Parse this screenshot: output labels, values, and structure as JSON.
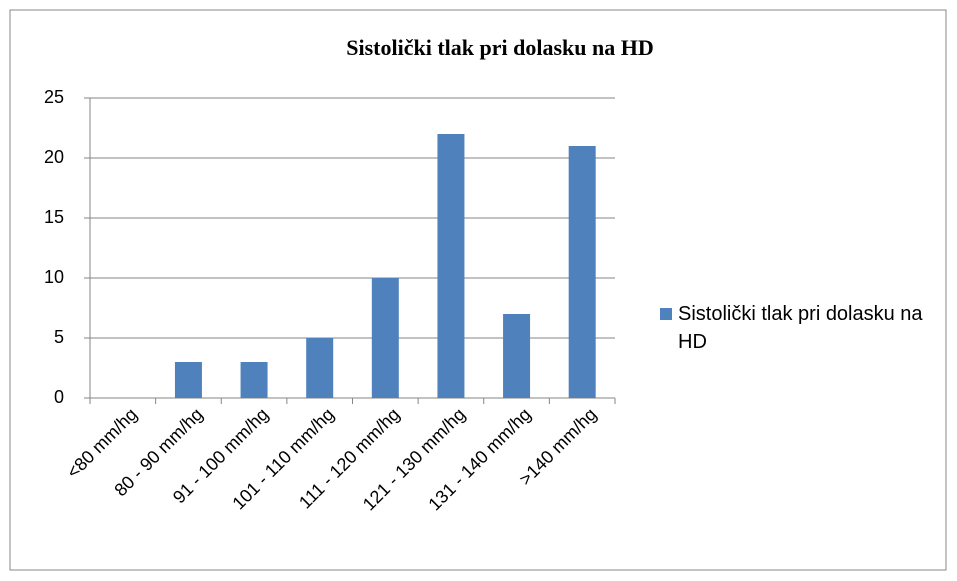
{
  "chart_data": {
    "type": "bar",
    "title": "Sistolički tlak pri dolasku na HD",
    "categories": [
      "<80 mm/hg",
      "80 - 90 mm/hg",
      "91 - 100 mm/hg",
      "101 - 110 mm/hg",
      "111 - 120 mm/hg",
      "121 - 130 mm/hg",
      "131 - 140 mm/hg",
      ">140 mm/hg"
    ],
    "series": [
      {
        "name": "Sistolički tlak pri dolasku na HD",
        "color": "#4f81bd",
        "values": [
          0,
          3,
          3,
          5,
          10,
          22,
          7,
          21
        ]
      }
    ],
    "ylim": [
      0,
      25
    ],
    "yticks": [
      0,
      5,
      10,
      15,
      20,
      25
    ],
    "grid": true,
    "legend": "right"
  }
}
